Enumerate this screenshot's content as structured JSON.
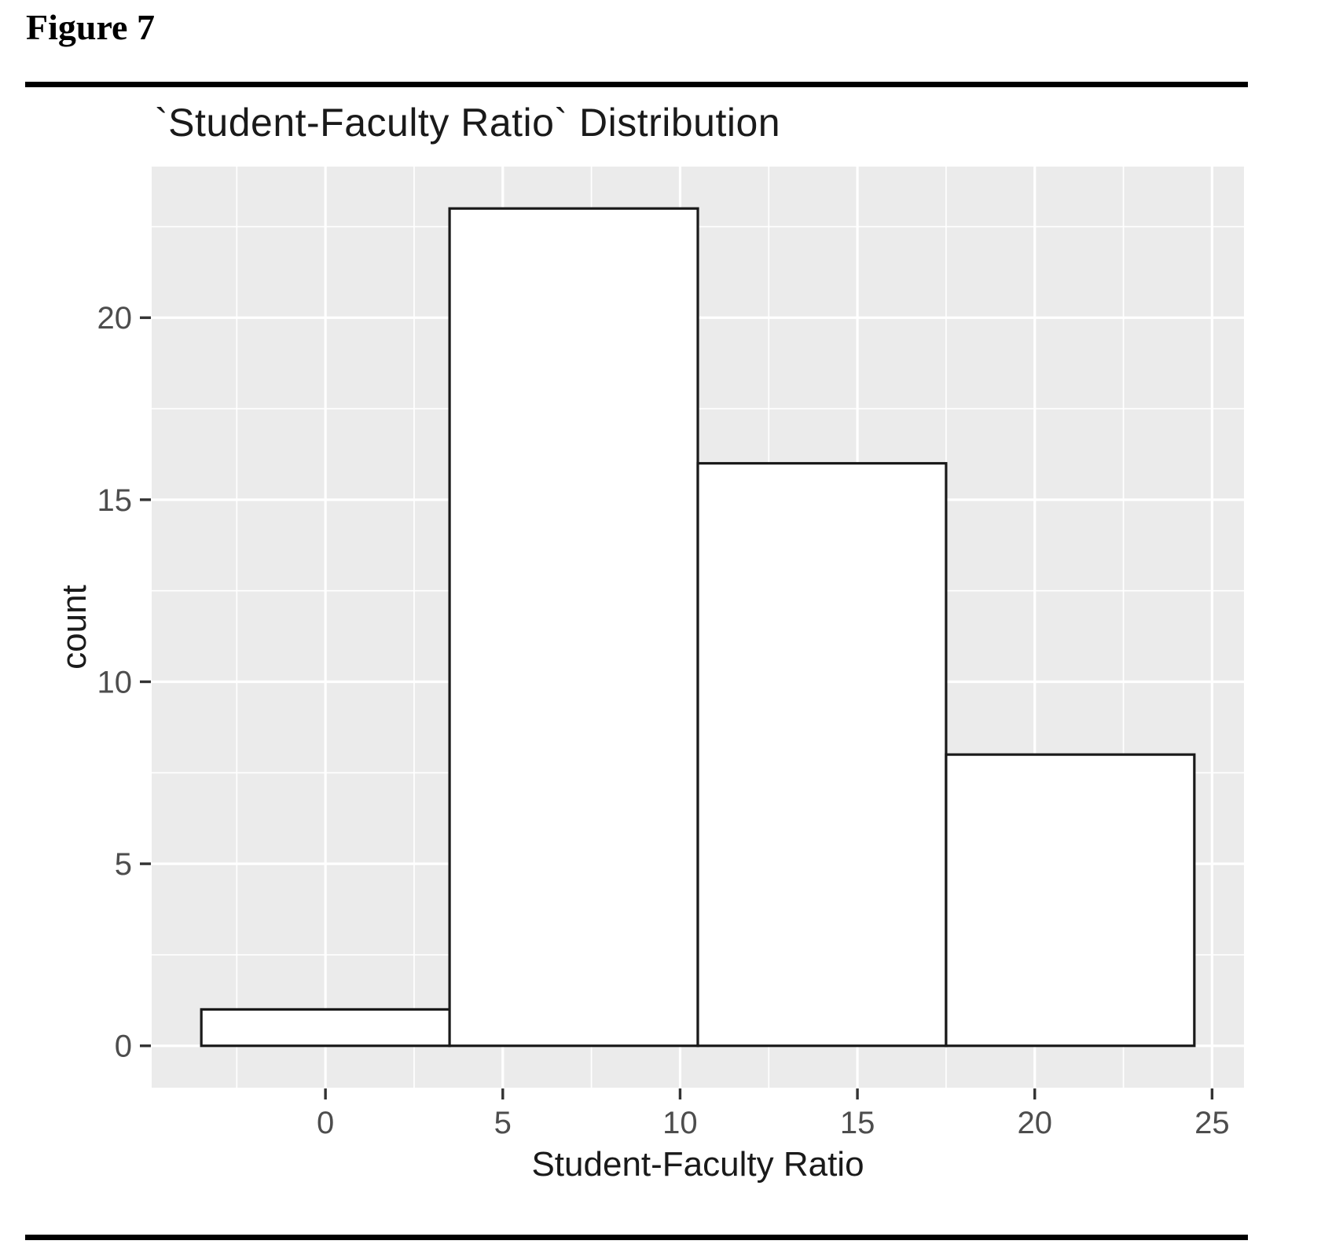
{
  "figure": {
    "label": "Figure 7"
  },
  "chart_data": {
    "type": "bar",
    "subtype": "histogram",
    "title": "`Student-Faculty Ratio` Distribution",
    "xlabel": "Student-Faculty Ratio",
    "ylabel": "count",
    "bins": [
      {
        "x0": -3.5,
        "x1": 3.5,
        "count": 1
      },
      {
        "x0": 3.5,
        "x1": 10.5,
        "count": 23
      },
      {
        "x0": 10.5,
        "x1": 17.5,
        "count": 16
      },
      {
        "x0": 17.5,
        "x1": 24.5,
        "count": 8
      }
    ],
    "binwidth": 7,
    "x_ticks": [
      0,
      5,
      10,
      15,
      20,
      25
    ],
    "y_ticks": [
      0,
      5,
      10,
      15,
      20
    ],
    "x_minor_gridlines": [
      -2.5,
      2.5,
      7.5,
      12.5,
      17.5,
      22.5
    ],
    "y_minor_gridlines": [
      2.5,
      7.5,
      12.5,
      17.5,
      22.5
    ],
    "xlim": [
      -4.9,
      25.9
    ],
    "ylim": [
      -1.15,
      24.15
    ],
    "grid": "on",
    "legend": "none",
    "colors": {
      "panel_background": "#ebebeb",
      "gridline": "#ffffff",
      "bar_fill": "#ffffff",
      "bar_stroke": "#1a1a1a",
      "tick_label": "#4d4d4d",
      "tick_mark": "#333333",
      "axis_title": "#1a1a1a",
      "rule": "#000000"
    }
  }
}
